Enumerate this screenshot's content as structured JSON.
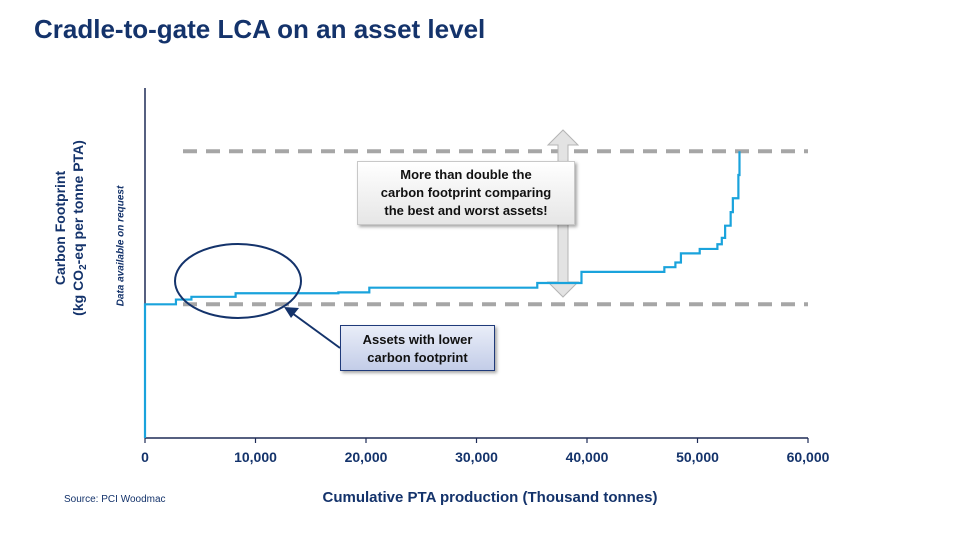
{
  "title": "Cradle-to-gate LCA on an asset level",
  "source": "Source: PCI Woodmac",
  "ylabel": {
    "line1": "Carbon Footprint",
    "line2_pre": "(kg CO",
    "line2_sub": "2",
    "line2_post": "-eq per tonne PTA)"
  },
  "ylabel_note": "Data available on request",
  "callouts": {
    "double": [
      "More than double the",
      "carbon footprint comparing",
      "the best and worst assets!"
    ],
    "lower": [
      "Assets with lower",
      "carbon footprint"
    ]
  },
  "colors": {
    "title": "#14336b",
    "series": "#1aa3dc",
    "dashed": "#a6a6a6",
    "ellipse": "#14336b"
  },
  "chart_data": {
    "type": "line",
    "step": true,
    "title": "Cradle-to-gate LCA on an asset level",
    "xlabel": "Cumulative PTA production (Thousand tonnes)",
    "ylabel": "Carbon Footprint (kg CO2-eq per tonne PTA)",
    "xlim": [
      0,
      60000
    ],
    "ylim": [
      0,
      100
    ],
    "x_ticks": [
      0,
      10000,
      20000,
      30000,
      40000,
      50000,
      60000
    ],
    "x_tick_labels": [
      "0",
      "10,000",
      "20,000",
      "30,000",
      "40,000",
      "50,000",
      "60,000"
    ],
    "y_ticks_shown": false,
    "reference_lines": [
      {
        "style": "dashed",
        "y": 48.3
      },
      {
        "style": "dashed",
        "y": 103.6
      }
    ],
    "series": [
      {
        "x": [
          0,
          0,
          2800,
          4200,
          8200,
          17500,
          20300,
          35500,
          39500,
          47000,
          48000,
          48500,
          50200,
          51800,
          52200,
          52500,
          53000,
          53200,
          53700,
          53800
        ],
        "y": [
          0,
          48.3,
          50.0,
          51.0,
          52.3,
          52.6,
          54.3,
          56.0,
          60.0,
          61.7,
          63.4,
          66.7,
          68.3,
          70.0,
          72.3,
          76.7,
          81.6,
          86.6,
          95.0,
          103.6
        ]
      }
    ]
  }
}
